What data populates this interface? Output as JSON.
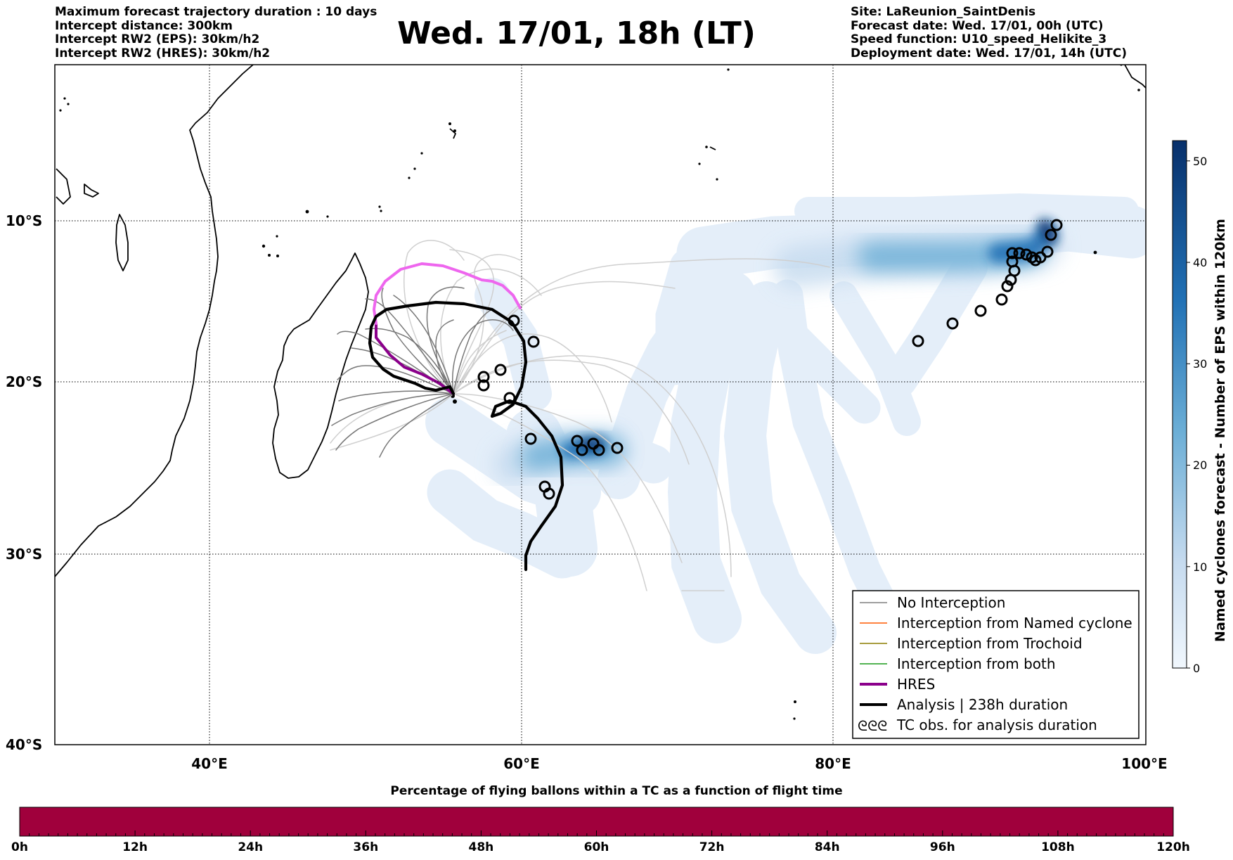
{
  "header": {
    "left_lines": [
      "Maximum forecast trajectory duration : 10 days",
      "Intercept distance: 300km",
      "Intercept RW2 (EPS):  30km/h2",
      "Intercept RW2 (HRES): 30km/h2"
    ],
    "title": "Wed. 17/01, 18h (LT)",
    "right_lines": [
      "Site: LaReunion_SaintDenis",
      "Forecast date: Wed. 17/01, 00h (UTC)",
      "Speed function: U10_speed_Helikite_3",
      "Deployment date: Wed. 17/01, 14h (UTC)"
    ]
  },
  "map": {
    "lat_labels": [
      "10°S",
      "20°S",
      "30°S",
      "40°S"
    ],
    "lon_labels": [
      "40°E",
      "60°E",
      "80°E",
      "100°E"
    ],
    "colors": {
      "no_interception": "#7f7f7f",
      "named_cyclone": "#ff5a00",
      "trochoid": "#8b7d00",
      "both": "#1a9a1a",
      "hres": "#8b008b",
      "hres_light": "#ee66ee",
      "analysis": "#000000",
      "density_low": "#deebf7",
      "density_high": "#08306b"
    },
    "legend": [
      {
        "label": "No Interception",
        "icon": "thin-gray-line"
      },
      {
        "label": "Interception from Named cyclone",
        "icon": "thin-orange-line"
      },
      {
        "label": "Interception from Trochoid",
        "icon": "thin-olive-line"
      },
      {
        "label": "Interception from both",
        "icon": "thin-green-line"
      },
      {
        "label": "HRES",
        "icon": "thick-purple-line"
      },
      {
        "label": "Analysis | 238h duration",
        "icon": "thick-black-line"
      },
      {
        "label": "TC obs. for analysis duration",
        "icon": "cyclone-symbol-icon"
      }
    ],
    "tc_obs_symbol": "ᘓᘓᘓ"
  },
  "colorbar": {
    "title": "Named cyclones forecast - Number of EPS within 120km",
    "ticks": [
      "0",
      "10",
      "20",
      "30",
      "40",
      "50"
    ],
    "range": [
      0,
      52
    ]
  },
  "bottom_bar": {
    "title": "Percentage of flying ballons within a TC as a function of flight time",
    "ticks": [
      "0h",
      "12h",
      "24h",
      "36h",
      "48h",
      "60h",
      "72h",
      "84h",
      "96h",
      "108h",
      "120h"
    ],
    "fill_color": "#a0003c"
  }
}
